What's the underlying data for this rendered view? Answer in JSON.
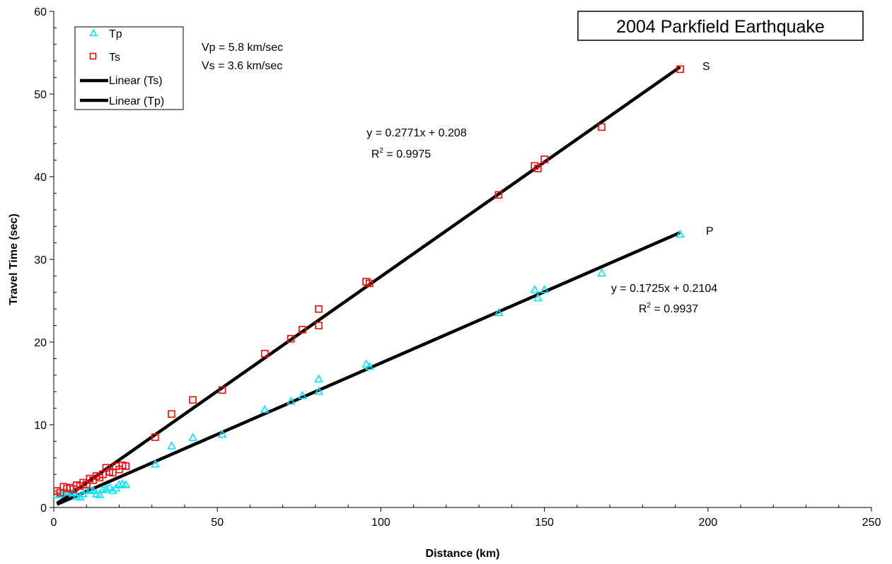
{
  "chart_data": {
    "type": "scatter",
    "title": "2004 Parkfield Earthquake",
    "xlabel": "Distance (km)",
    "ylabel": "Travel Time (sec)",
    "xlim": [
      0,
      250
    ],
    "ylim": [
      0,
      60
    ],
    "x_ticks": [
      "0",
      "50",
      "100",
      "150",
      "200",
      "250"
    ],
    "y_ticks": [
      "0",
      "10",
      "20",
      "30",
      "40",
      "50",
      "60"
    ],
    "grid": false,
    "legend_position": "top-left",
    "legend": [
      "Tp",
      "Ts",
      "Linear (Ts)",
      "Linear (Tp)"
    ],
    "velocity_note": [
      "Vp = 5.8 km/sec",
      "Vs = 3.6 km/sec"
    ],
    "series": [
      {
        "name": "Tp",
        "marker": "triangle",
        "color": "#00ffff",
        "points": [
          [
            1,
            1.5
          ],
          [
            2,
            1.6
          ],
          [
            3,
            1.8
          ],
          [
            4,
            1.9
          ],
          [
            5,
            1.8
          ],
          [
            6,
            1.7
          ],
          [
            7,
            1.3
          ],
          [
            8,
            1.2
          ],
          [
            9,
            1.6
          ],
          [
            10,
            2.0
          ],
          [
            11,
            2.1
          ],
          [
            12,
            2.0
          ],
          [
            13,
            1.6
          ],
          [
            14,
            1.5
          ],
          [
            15,
            2.1
          ],
          [
            16,
            2.2
          ],
          [
            17,
            2.4
          ],
          [
            18,
            2.0
          ],
          [
            19,
            2.3
          ],
          [
            20,
            2.7
          ],
          [
            21,
            2.8
          ],
          [
            22,
            2.7
          ],
          [
            31,
            5.2
          ],
          [
            36,
            7.4
          ],
          [
            42.5,
            8.4
          ],
          [
            51.5,
            8.8
          ],
          [
            64.5,
            11.8
          ],
          [
            72.5,
            12.8
          ],
          [
            76,
            13.5
          ],
          [
            81,
            15.5
          ],
          [
            81,
            14.0
          ],
          [
            95.5,
            17.3
          ],
          [
            96.5,
            17.0
          ],
          [
            136,
            23.5
          ],
          [
            147,
            26.3
          ],
          [
            148,
            25.3
          ],
          [
            150,
            26.3
          ],
          [
            167.5,
            28.3
          ],
          [
            191.5,
            33.0
          ]
        ]
      },
      {
        "name": "Ts",
        "marker": "square",
        "color": "#ff0000",
        "points": [
          [
            1,
            2.0
          ],
          [
            2,
            1.8
          ],
          [
            3,
            2.5
          ],
          [
            4,
            2.3
          ],
          [
            5,
            2.4
          ],
          [
            6,
            2.2
          ],
          [
            7,
            2.7
          ],
          [
            8,
            2.6
          ],
          [
            9,
            3.0
          ],
          [
            10,
            2.8
          ],
          [
            11,
            3.5
          ],
          [
            12,
            3.3
          ],
          [
            13,
            3.8
          ],
          [
            14,
            3.6
          ],
          [
            15,
            4.0
          ],
          [
            16,
            4.8
          ],
          [
            17,
            4.3
          ],
          [
            18,
            4.2
          ],
          [
            19,
            5.0
          ],
          [
            20,
            4.6
          ],
          [
            21,
            5.1
          ],
          [
            22,
            5.0
          ],
          [
            31,
            8.5
          ],
          [
            36,
            11.3
          ],
          [
            42.5,
            13.0
          ],
          [
            51.5,
            14.2
          ],
          [
            64.5,
            18.6
          ],
          [
            72.5,
            20.4
          ],
          [
            76,
            21.5
          ],
          [
            81,
            24.0
          ],
          [
            81,
            22.0
          ],
          [
            95.5,
            27.3
          ],
          [
            96.5,
            27.1
          ],
          [
            136,
            37.8
          ],
          [
            147,
            41.3
          ],
          [
            148,
            41.0
          ],
          [
            150,
            42.1
          ],
          [
            167.5,
            46.0
          ],
          [
            191.5,
            53.0
          ]
        ]
      }
    ],
    "trendlines": [
      {
        "name": "Linear (Ts)",
        "slope": 0.2771,
        "intercept": 0.208,
        "x_range": [
          1,
          191.5
        ],
        "equation": "y = 0.2771x + 0.208",
        "r2_label": "R",
        "r2_exp": "2",
        "r2_value": " = 0.9975",
        "end_label": "S"
      },
      {
        "name": "Linear (Tp)",
        "slope": 0.1725,
        "intercept": 0.2104,
        "x_range": [
          1,
          191.5
        ],
        "equation": "y = 0.1725x + 0.2104",
        "r2_label": "R",
        "r2_exp": "2",
        "r2_value": " = 0.9937",
        "end_label": "P"
      }
    ]
  }
}
